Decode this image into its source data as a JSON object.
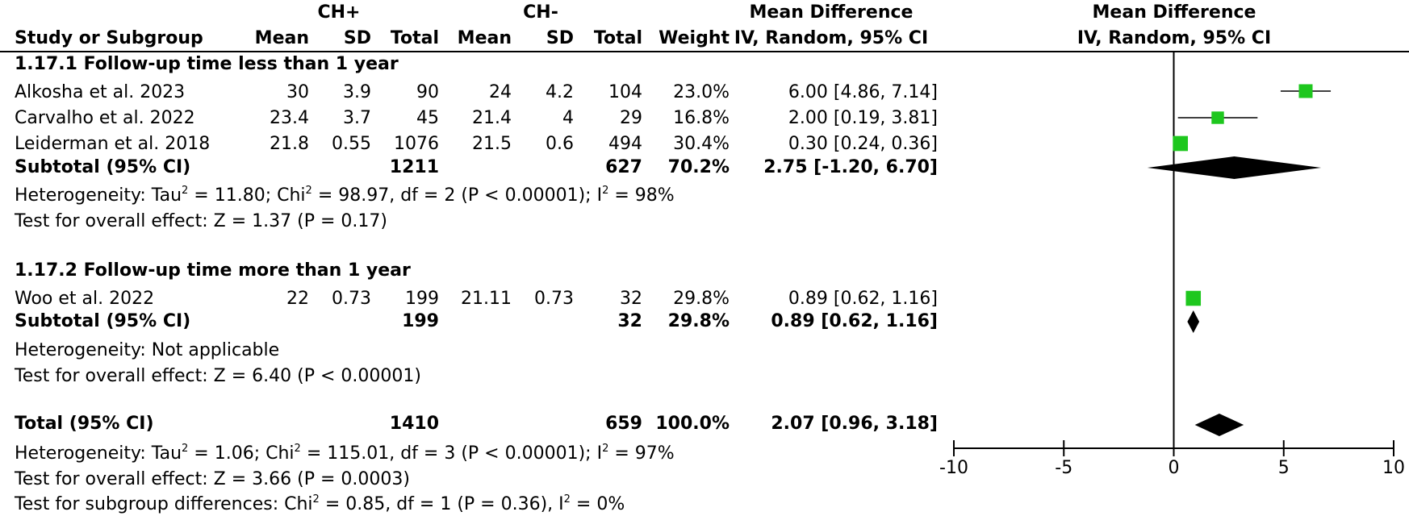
{
  "header": {
    "group1": "CH+",
    "group2": "CH-",
    "md_title": "Mean Difference",
    "md_sub": "IV, Random, 95% CI",
    "plot_title": "Mean Difference",
    "plot_sub": "IV, Random, 95% CI",
    "study_col": "Study or Subgroup",
    "mean1": "Mean",
    "sd1": "SD",
    "total1": "Total",
    "mean2": "Mean",
    "sd2": "SD",
    "total2": "Total",
    "weight": "Weight"
  },
  "subgroup1": {
    "title": "1.17.1 Follow-up time less than 1 year",
    "studies": [
      {
        "name": "Alkosha et al. 2023",
        "mean1": "30",
        "sd1": "3.9",
        "total1": "90",
        "mean2": "24",
        "sd2": "4.2",
        "total2": "104",
        "weight": "23.0%",
        "ci": "6.00 [4.86, 7.14]"
      },
      {
        "name": "Carvalho et al. 2022",
        "mean1": "23.4",
        "sd1": "3.7",
        "total1": "45",
        "mean2": "21.4",
        "sd2": "4",
        "total2": "29",
        "weight": "16.8%",
        "ci": "2.00 [0.19, 3.81]"
      },
      {
        "name": "Leiderman et al. 2018",
        "mean1": "21.8",
        "sd1": "0.55",
        "total1": "1076",
        "mean2": "21.5",
        "sd2": "0.6",
        "total2": "494",
        "weight": "30.4%",
        "ci": "0.30 [0.24, 0.36]"
      }
    ],
    "subtotal": {
      "label": "Subtotal (95% CI)",
      "total1": "1211",
      "total2": "627",
      "weight": "70.2%",
      "ci": "2.75 [-1.20, 6.70]"
    },
    "het_prefix": "Heterogeneity: Tau",
    "het_mid1": " = 11.80; Chi",
    "het_mid2": " = 98.97, df = 2 (P < 0.00001); I",
    "het_end": " = 98%",
    "sup": "2",
    "effect": "Test for overall effect: Z = 1.37 (P = 0.17)"
  },
  "subgroup2": {
    "title": "1.17.2 Follow-up time more than 1 year",
    "studies": [
      {
        "name": "Woo et al. 2022",
        "mean1": "22",
        "sd1": "0.73",
        "total1": "199",
        "mean2": "21.11",
        "sd2": "0.73",
        "total2": "32",
        "weight": "29.8%",
        "ci": "0.89 [0.62, 1.16]"
      }
    ],
    "subtotal": {
      "label": "Subtotal (95% CI)",
      "total1": "199",
      "total2": "32",
      "weight": "29.8%",
      "ci": "0.89 [0.62, 1.16]"
    },
    "het": "Heterogeneity: Not applicable",
    "effect": "Test for overall effect: Z = 6.40 (P < 0.00001)"
  },
  "total": {
    "label": "Total (95% CI)",
    "total1": "1410",
    "total2": "659",
    "weight": "100.0%",
    "ci": "2.07 [0.96, 3.18]",
    "het_prefix": "Heterogeneity: Tau",
    "het_mid1": " = 1.06; Chi",
    "het_mid2": " = 115.01, df = 3 (P < 0.00001); I",
    "het_end": " = 97%",
    "sup": "2",
    "effect": "Test for overall effect: Z = 3.66 (P = 0.0003)",
    "subgroup_prefix": "Test for subgroup differences: Chi",
    "subgroup_mid": " = 0.85, df = 1 (P = 0.36), I",
    "subgroup_end": " = 0%"
  },
  "chart_data": {
    "type": "forest",
    "xlim": [
      -10,
      10
    ],
    "xticks": [
      "-10",
      "-5",
      "0",
      "5",
      "10"
    ],
    "xtick_values": [
      -10,
      -5,
      0,
      5,
      10
    ],
    "colors": {
      "study_marker": "#1ec71e",
      "diamond": "#000000",
      "line": "#000000"
    },
    "studies": [
      {
        "name": "Alkosha et al. 2023",
        "md": 6.0,
        "lo": 4.86,
        "hi": 7.14,
        "weight": 23.0
      },
      {
        "name": "Carvalho et al. 2022",
        "md": 2.0,
        "lo": 0.19,
        "hi": 3.81,
        "weight": 16.8
      },
      {
        "name": "Leiderman et al. 2018",
        "md": 0.3,
        "lo": 0.24,
        "hi": 0.36,
        "weight": 30.4
      },
      {
        "name": "Woo et al. 2022",
        "md": 0.89,
        "lo": 0.62,
        "hi": 1.16,
        "weight": 29.8
      }
    ],
    "diamonds": [
      {
        "name": "Subtotal 1.17.1",
        "md": 2.75,
        "lo": -1.2,
        "hi": 6.7
      },
      {
        "name": "Subtotal 1.17.2",
        "md": 0.89,
        "lo": 0.62,
        "hi": 1.16
      },
      {
        "name": "Total",
        "md": 2.07,
        "lo": 0.96,
        "hi": 3.18
      }
    ]
  }
}
